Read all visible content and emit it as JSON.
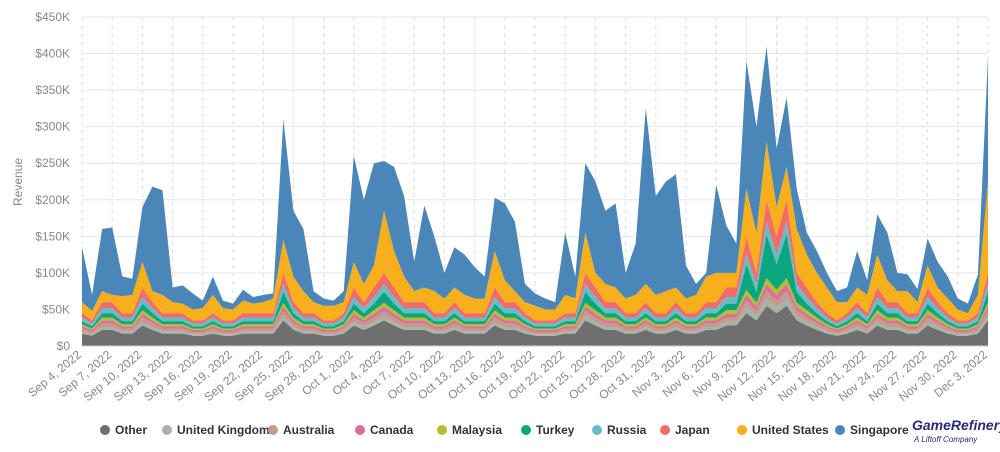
{
  "chart_data": {
    "type": "stacked-area",
    "ylabel": "Revenue",
    "categories": [
      "Sep 4, 2022",
      null,
      null,
      "Sep 7, 2022",
      null,
      null,
      "Sep 10, 2022",
      null,
      null,
      "Sep 13, 2022",
      null,
      null,
      "Sep 16, 2022",
      null,
      null,
      "Sep 19, 2022",
      null,
      null,
      "Sep 22, 2022",
      null,
      null,
      "Sep 25, 2022",
      null,
      null,
      "Sep 28, 2022",
      null,
      null,
      "Oct 1, 2022",
      null,
      null,
      "Oct 4, 2022",
      null,
      null,
      "Oct 7, 2022",
      null,
      null,
      "Oct 10, 2022",
      null,
      null,
      "Oct 13, 2022",
      null,
      null,
      "Oct 16, 2022",
      null,
      null,
      "Oct 19, 2022",
      null,
      null,
      "Oct 22, 2022",
      null,
      null,
      "Oct 25, 2022",
      null,
      null,
      "Oct 28, 2022",
      null,
      null,
      "Oct 31, 2022",
      null,
      null,
      "Nov 3, 2022",
      null,
      null,
      "Nov 6, 2022",
      null,
      null,
      "Nov 9, 2022",
      null,
      null,
      "Nov 12, 2022",
      null,
      null,
      "Nov 15, 2022",
      null,
      null,
      "Nov 18, 2022",
      null,
      null,
      "Nov 21, 2022",
      null,
      null,
      "Nov 24, 2022",
      null,
      null,
      "Nov 27, 2022",
      null,
      null,
      "Nov 30, 2022",
      null,
      null,
      "Dec 3, 2022"
    ],
    "ylim": [
      0,
      450000
    ],
    "yticks": [
      {
        "value": 0,
        "label": "$0"
      },
      {
        "value": 50000,
        "label": "$50K"
      },
      {
        "value": 100000,
        "label": "$100K"
      },
      {
        "value": 150000,
        "label": "$150K"
      },
      {
        "value": 200000,
        "label": "$200K"
      },
      {
        "value": 250000,
        "label": "$250K"
      },
      {
        "value": 300000,
        "label": "$300K"
      },
      {
        "value": 350000,
        "label": "$350K"
      },
      {
        "value": 400000,
        "label": "$400K"
      },
      {
        "value": 450000,
        "label": "$450K"
      }
    ],
    "grid": true,
    "series": [
      {
        "name": "Other",
        "color": "#6f6f6f",
        "values": [
          17000,
          14000,
          22000,
          22000,
          17000,
          17000,
          28000,
          22000,
          17000,
          17000,
          17000,
          14000,
          14000,
          17000,
          14000,
          14000,
          17000,
          17000,
          17000,
          17000,
          35000,
          22000,
          17000,
          17000,
          14000,
          14000,
          17000,
          28000,
          22000,
          28000,
          35000,
          28000,
          22000,
          22000,
          22000,
          17000,
          17000,
          22000,
          17000,
          17000,
          17000,
          28000,
          22000,
          22000,
          17000,
          14000,
          14000,
          14000,
          17000,
          17000,
          35000,
          28000,
          22000,
          22000,
          17000,
          17000,
          22000,
          17000,
          17000,
          22000,
          17000,
          17000,
          22000,
          22000,
          28000,
          28000,
          45000,
          35000,
          55000,
          45000,
          55000,
          35000,
          28000,
          22000,
          17000,
          14000,
          17000,
          22000,
          17000,
          28000,
          22000,
          22000,
          17000,
          17000,
          28000,
          22000,
          17000,
          14000,
          14000,
          17000,
          35000
        ]
      },
      {
        "name": "United Kingdom",
        "color": "#a3b5ab",
        "values": [
          3000,
          2000,
          4000,
          4000,
          3000,
          3000,
          5000,
          4000,
          3000,
          3000,
          3000,
          2000,
          2000,
          3000,
          2000,
          2000,
          3000,
          3000,
          3000,
          3000,
          6000,
          4000,
          3000,
          3000,
          2000,
          2000,
          3000,
          5000,
          4000,
          5000,
          6000,
          5000,
          4000,
          4000,
          4000,
          3000,
          3000,
          4000,
          3000,
          3000,
          3000,
          5000,
          4000,
          4000,
          3000,
          2000,
          2000,
          2000,
          3000,
          3000,
          6000,
          5000,
          4000,
          4000,
          3000,
          3000,
          4000,
          3000,
          3000,
          4000,
          3000,
          3000,
          4000,
          4000,
          5000,
          5000,
          8000,
          6000,
          10000,
          8000,
          10000,
          6000,
          5000,
          4000,
          3000,
          2000,
          3000,
          4000,
          3000,
          5000,
          4000,
          4000,
          3000,
          3000,
          5000,
          4000,
          3000,
          2000,
          2000,
          3000,
          6000
        ]
      },
      {
        "name": "Australia",
        "color": "#c79b8b",
        "values": [
          4000,
          3000,
          5000,
          5000,
          4000,
          4000,
          6000,
          5000,
          4000,
          4000,
          4000,
          3000,
          3000,
          4000,
          3000,
          3000,
          4000,
          4000,
          4000,
          4000,
          7000,
          5000,
          4000,
          4000,
          3000,
          3000,
          4000,
          6000,
          5000,
          6000,
          7000,
          6000,
          5000,
          5000,
          5000,
          4000,
          4000,
          5000,
          4000,
          4000,
          4000,
          6000,
          5000,
          5000,
          4000,
          3000,
          3000,
          3000,
          4000,
          4000,
          7000,
          6000,
          5000,
          5000,
          4000,
          4000,
          5000,
          4000,
          4000,
          5000,
          4000,
          4000,
          5000,
          5000,
          6000,
          6000,
          9000,
          7000,
          10000,
          9000,
          10000,
          7000,
          6000,
          5000,
          4000,
          3000,
          4000,
          5000,
          4000,
          6000,
          5000,
          5000,
          4000,
          4000,
          6000,
          5000,
          4000,
          3000,
          3000,
          4000,
          7000
        ]
      },
      {
        "name": "Canada",
        "color": "#d8719b",
        "values": [
          3000,
          3000,
          4000,
          4000,
          3000,
          3000,
          5000,
          4000,
          3000,
          3000,
          3000,
          3000,
          3000,
          3000,
          3000,
          3000,
          3000,
          3000,
          3000,
          3000,
          6000,
          4000,
          3000,
          3000,
          3000,
          3000,
          3000,
          5000,
          4000,
          5000,
          6000,
          5000,
          4000,
          4000,
          4000,
          3000,
          3000,
          4000,
          3000,
          3000,
          3000,
          5000,
          4000,
          4000,
          3000,
          3000,
          3000,
          3000,
          3000,
          3000,
          6000,
          5000,
          4000,
          4000,
          3000,
          3000,
          4000,
          3000,
          3000,
          4000,
          3000,
          3000,
          4000,
          4000,
          5000,
          5000,
          8000,
          6000,
          10000,
          8000,
          10000,
          6000,
          5000,
          4000,
          3000,
          3000,
          3000,
          4000,
          3000,
          5000,
          4000,
          4000,
          3000,
          3000,
          5000,
          4000,
          3000,
          3000,
          3000,
          3000,
          6000
        ]
      },
      {
        "name": "Malaysia",
        "color": "#b8bd2f",
        "values": [
          3000,
          2000,
          4000,
          4000,
          3000,
          3000,
          5000,
          4000,
          3000,
          3000,
          3000,
          2000,
          2000,
          3000,
          2000,
          2000,
          3000,
          3000,
          3000,
          3000,
          5000,
          4000,
          3000,
          3000,
          2000,
          2000,
          3000,
          5000,
          4000,
          5000,
          5000,
          5000,
          4000,
          4000,
          4000,
          3000,
          3000,
          4000,
          3000,
          3000,
          3000,
          5000,
          4000,
          4000,
          3000,
          2000,
          2000,
          2000,
          3000,
          3000,
          5000,
          5000,
          4000,
          4000,
          3000,
          3000,
          4000,
          3000,
          3000,
          4000,
          3000,
          3000,
          4000,
          4000,
          5000,
          5000,
          7000,
          5000,
          8000,
          7000,
          8000,
          5000,
          5000,
          4000,
          3000,
          2000,
          3000,
          4000,
          3000,
          5000,
          4000,
          4000,
          3000,
          3000,
          5000,
          4000,
          3000,
          2000,
          2000,
          3000,
          5000
        ]
      },
      {
        "name": "Turkey",
        "color": "#0ba67f",
        "values": [
          4000,
          3000,
          6000,
          6000,
          4000,
          4000,
          9000,
          6000,
          4000,
          4000,
          4000,
          3000,
          3000,
          4000,
          3000,
          3000,
          4000,
          4000,
          4000,
          4000,
          15000,
          6000,
          4000,
          4000,
          3000,
          3000,
          4000,
          9000,
          6000,
          9000,
          15000,
          9000,
          6000,
          6000,
          6000,
          4000,
          4000,
          6000,
          4000,
          4000,
          4000,
          9000,
          6000,
          6000,
          4000,
          3000,
          3000,
          3000,
          4000,
          4000,
          15000,
          9000,
          6000,
          6000,
          4000,
          4000,
          6000,
          4000,
          4000,
          6000,
          4000,
          4000,
          6000,
          6000,
          9000,
          9000,
          35000,
          15000,
          60000,
          35000,
          60000,
          15000,
          9000,
          6000,
          4000,
          3000,
          4000,
          6000,
          4000,
          9000,
          6000,
          6000,
          4000,
          4000,
          9000,
          6000,
          4000,
          3000,
          3000,
          4000,
          15000
        ]
      },
      {
        "name": "Russia",
        "color": "#67bdc5",
        "values": [
          5000,
          4000,
          7000,
          7000,
          5000,
          5000,
          9000,
          7000,
          5000,
          5000,
          5000,
          4000,
          4000,
          5000,
          4000,
          4000,
          5000,
          5000,
          5000,
          5000,
          11000,
          7000,
          5000,
          5000,
          4000,
          4000,
          5000,
          9000,
          7000,
          9000,
          11000,
          9000,
          7000,
          7000,
          7000,
          5000,
          5000,
          7000,
          5000,
          5000,
          5000,
          9000,
          7000,
          7000,
          5000,
          4000,
          4000,
          4000,
          5000,
          5000,
          11000,
          9000,
          7000,
          7000,
          5000,
          5000,
          7000,
          5000,
          5000,
          7000,
          5000,
          5000,
          7000,
          7000,
          9000,
          9000,
          14000,
          11000,
          17000,
          14000,
          17000,
          11000,
          9000,
          7000,
          5000,
          4000,
          5000,
          7000,
          5000,
          9000,
          7000,
          7000,
          5000,
          5000,
          9000,
          7000,
          5000,
          4000,
          4000,
          5000,
          11000
        ]
      },
      {
        "name": "Japan",
        "color": "#f36b6a",
        "values": [
          6000,
          4000,
          8000,
          8000,
          6000,
          6000,
          13000,
          8000,
          6000,
          6000,
          6000,
          4000,
          4000,
          6000,
          4000,
          4000,
          6000,
          6000,
          6000,
          6000,
          15000,
          8000,
          6000,
          6000,
          4000,
          4000,
          6000,
          13000,
          8000,
          13000,
          15000,
          13000,
          8000,
          8000,
          8000,
          6000,
          6000,
          8000,
          6000,
          6000,
          6000,
          13000,
          8000,
          8000,
          6000,
          4000,
          4000,
          4000,
          6000,
          6000,
          15000,
          13000,
          8000,
          8000,
          6000,
          6000,
          8000,
          6000,
          6000,
          8000,
          6000,
          6000,
          8000,
          8000,
          13000,
          13000,
          24000,
          15000,
          30000,
          24000,
          30000,
          15000,
          13000,
          8000,
          6000,
          4000,
          6000,
          8000,
          6000,
          13000,
          8000,
          8000,
          6000,
          6000,
          13000,
          8000,
          6000,
          4000,
          4000,
          6000,
          15000
        ]
      },
      {
        "name": "United States",
        "color": "#f8af1c",
        "values": [
          15000,
          13000,
          15000,
          10000,
          23000,
          25000,
          35000,
          15000,
          25000,
          15000,
          13000,
          15000,
          17000,
          25000,
          17000,
          15000,
          17000,
          13000,
          15000,
          20000,
          45000,
          35000,
          30000,
          15000,
          20000,
          20000,
          15000,
          35000,
          25000,
          30000,
          85000,
          50000,
          35000,
          15000,
          20000,
          30000,
          20000,
          20000,
          25000,
          20000,
          20000,
          50000,
          30000,
          15000,
          15000,
          20000,
          15000,
          15000,
          25000,
          20000,
          55000,
          20000,
          25000,
          20000,
          20000,
          25000,
          25000,
          25000,
          30000,
          20000,
          20000,
          25000,
          35000,
          40000,
          20000,
          20000,
          65000,
          55000,
          80000,
          40000,
          45000,
          60000,
          45000,
          40000,
          35000,
          25000,
          15000,
          20000,
          25000,
          45000,
          30000,
          15000,
          30000,
          15000,
          30000,
          20000,
          20000,
          15000,
          10000,
          25000,
          125000
        ]
      },
      {
        "name": "Singapore",
        "color": "#4a86b7",
        "values": [
          75000,
          22000,
          85000,
          92000,
          27000,
          22000,
          75000,
          143000,
          143000,
          20000,
          25000,
          22000,
          10000,
          25000,
          10000,
          8000,
          15000,
          9000,
          10000,
          7000,
          165000,
          90000,
          85000,
          15000,
          10000,
          7000,
          15000,
          145000,
          115000,
          140000,
          68000,
          115000,
          110000,
          40000,
          112000,
          75000,
          35000,
          55000,
          55000,
          43000,
          30000,
          73000,
          105000,
          95000,
          25000,
          17000,
          15000,
          10000,
          85000,
          30000,
          95000,
          125000,
          100000,
          115000,
          35000,
          70000,
          240000,
          135000,
          150000,
          155000,
          45000,
          15000,
          5000,
          120000,
          65000,
          40000,
          175000,
          145000,
          130000,
          80000,
          95000,
          55000,
          30000,
          30000,
          20000,
          15000,
          20000,
          50000,
          20000,
          55000,
          65000,
          25000,
          23000,
          18000,
          37000,
          35000,
          30000,
          15000,
          13000,
          28000,
          170000
        ]
      }
    ]
  },
  "logo": {
    "name": "GameRefinery",
    "tagline": "A Liftoff Company"
  }
}
